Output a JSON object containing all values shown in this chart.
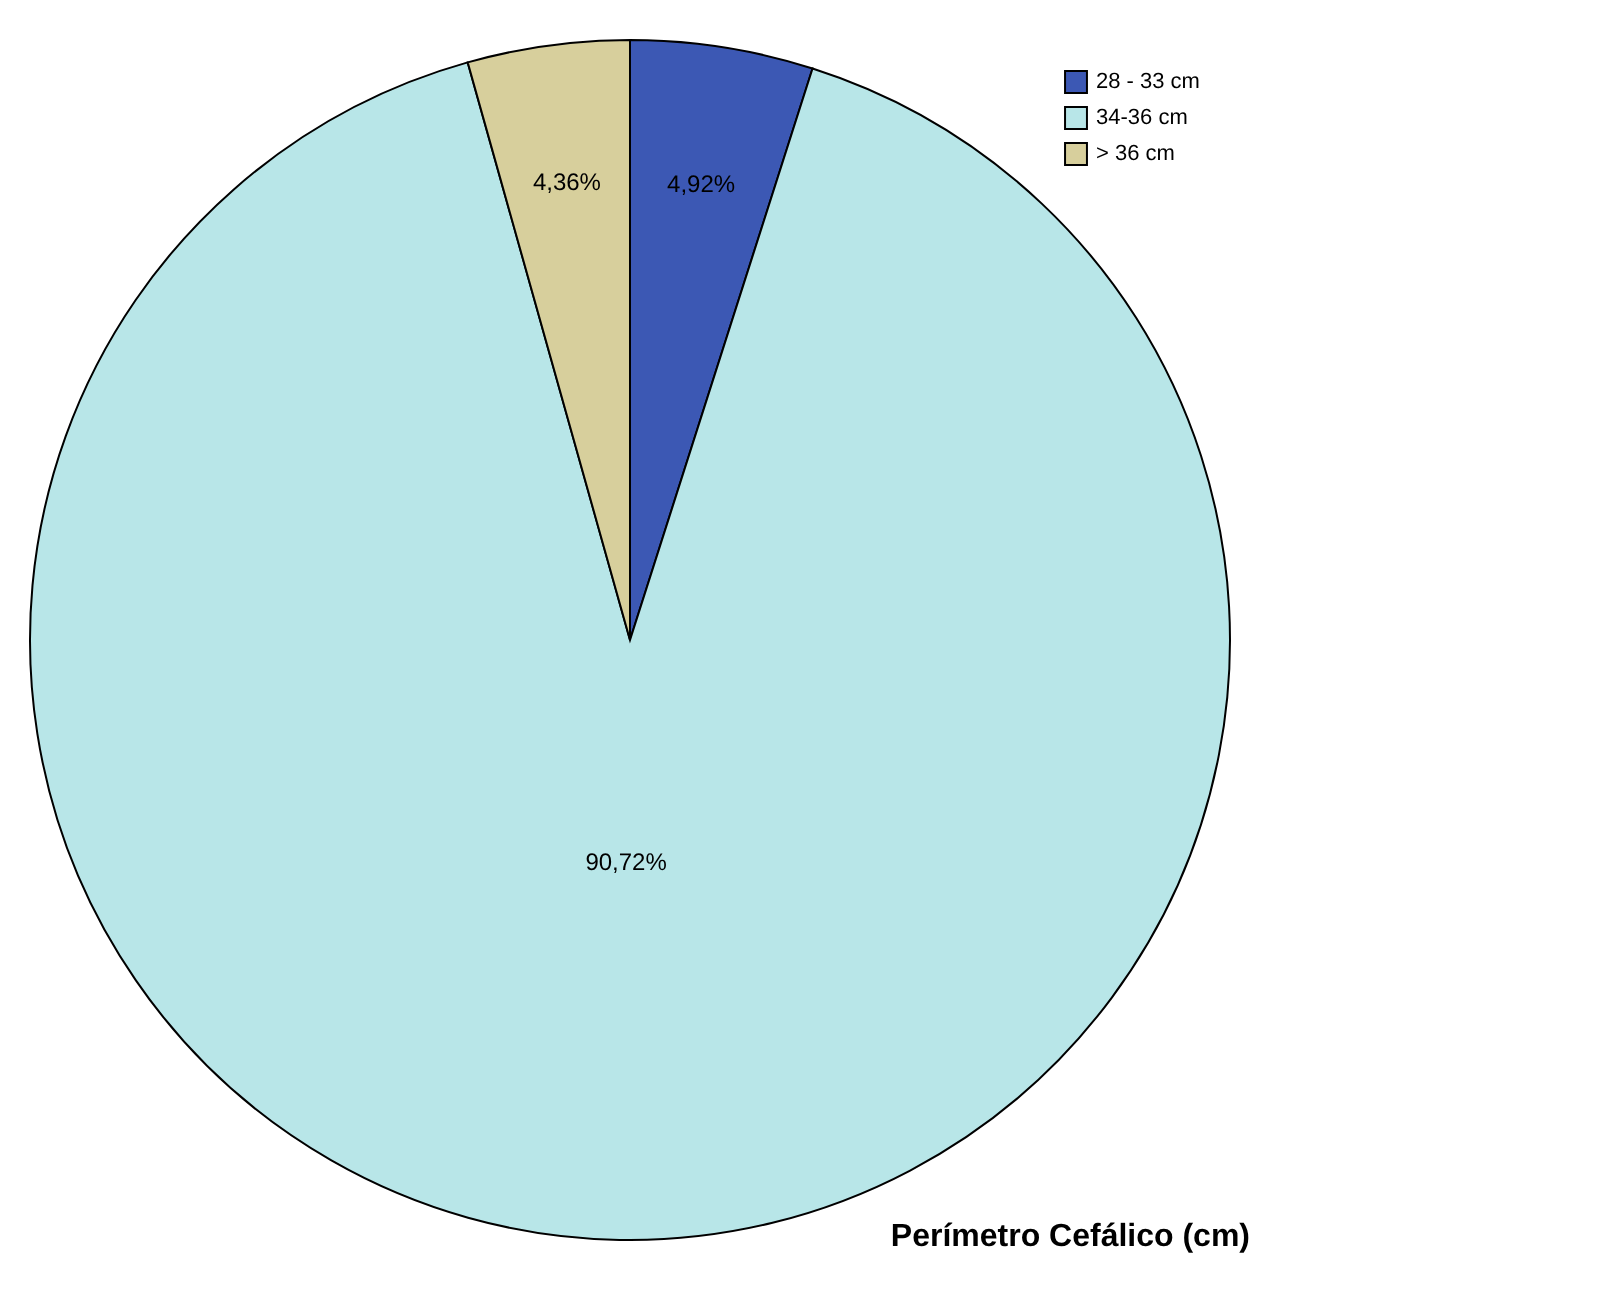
{
  "chart_data": {
    "type": "pie",
    "title": "Perímetro Cefálico (cm)",
    "categories": [
      "28 - 33 cm",
      "34-36 cm",
      "> 36 cm"
    ],
    "values": [
      4.92,
      90.72,
      4.36
    ],
    "colors": [
      "#3c58b4",
      "#b8e6e8",
      "#d7cf9c"
    ],
    "value_labels": [
      "4,92%",
      "90,72%",
      "4,36%"
    ],
    "legend": "top right"
  }
}
